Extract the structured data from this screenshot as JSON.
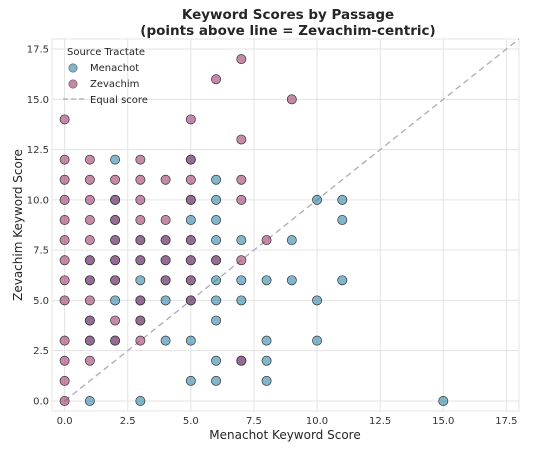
{
  "chart_data": {
    "type": "scatter",
    "title_line1": "Keyword Scores by Passage",
    "title_line2": "(points above line = Zevachim-centric)",
    "xlabel": "Menachot Keyword Score",
    "ylabel": "Zevachim Keyword Score",
    "xlim": [
      -0.5,
      18
    ],
    "ylim": [
      -0.5,
      18
    ],
    "x_ticks": [
      "0.0",
      "2.5",
      "5.0",
      "7.5",
      "10.0",
      "12.5",
      "15.0",
      "17.5"
    ],
    "y_ticks": [
      "0.0",
      "2.5",
      "5.0",
      "7.5",
      "10.0",
      "12.5",
      "15.0",
      "17.5"
    ],
    "x_tick_values": [
      0,
      2.5,
      5,
      7.5,
      10,
      12.5,
      15,
      17.5
    ],
    "y_tick_values": [
      0,
      2.5,
      5,
      7.5,
      10,
      12.5,
      15,
      17.5
    ],
    "grid": true,
    "legend": {
      "title": "Source Tractate",
      "position": "top-left",
      "diagonal_label": "Equal score"
    },
    "diagonal": {
      "from": [
        0,
        0
      ],
      "to": [
        18,
        18
      ],
      "style": "dashed",
      "color": "#b0a8b9"
    },
    "series": [
      {
        "name": "Menachot",
        "color": "#2e86ab",
        "points": [
          [
            1,
            0
          ],
          [
            3,
            0
          ],
          [
            15,
            0
          ],
          [
            5,
            1
          ],
          [
            6,
            1
          ],
          [
            8,
            1
          ],
          [
            6,
            2
          ],
          [
            7,
            2
          ],
          [
            8,
            2
          ],
          [
            1,
            3
          ],
          [
            2,
            3
          ],
          [
            4,
            3
          ],
          [
            5,
            3
          ],
          [
            8,
            3
          ],
          [
            10,
            3
          ],
          [
            1,
            4
          ],
          [
            3,
            4
          ],
          [
            6,
            4
          ],
          [
            2,
            5
          ],
          [
            3,
            5
          ],
          [
            4,
            5
          ],
          [
            5,
            5
          ],
          [
            6,
            5
          ],
          [
            7,
            5
          ],
          [
            10,
            5
          ],
          [
            1,
            6
          ],
          [
            2,
            6
          ],
          [
            3,
            6
          ],
          [
            4,
            6
          ],
          [
            5,
            6
          ],
          [
            6,
            6
          ],
          [
            7,
            6
          ],
          [
            8,
            6
          ],
          [
            9,
            6
          ],
          [
            11,
            6
          ],
          [
            1,
            7
          ],
          [
            2,
            7
          ],
          [
            3,
            7
          ],
          [
            4,
            7
          ],
          [
            5,
            7
          ],
          [
            6,
            7
          ],
          [
            2,
            8
          ],
          [
            3,
            8
          ],
          [
            4,
            8
          ],
          [
            5,
            8
          ],
          [
            6,
            8
          ],
          [
            7,
            8
          ],
          [
            9,
            8
          ],
          [
            2,
            9
          ],
          [
            5,
            9
          ],
          [
            6,
            9
          ],
          [
            11,
            9
          ],
          [
            2,
            10
          ],
          [
            5,
            10
          ],
          [
            6,
            10
          ],
          [
            10,
            10
          ],
          [
            11,
            10
          ],
          [
            6,
            11
          ],
          [
            2,
            12
          ],
          [
            5,
            12
          ]
        ]
      },
      {
        "name": "Zevachim",
        "color": "#a23b72",
        "points": [
          [
            0,
            0
          ],
          [
            0,
            1
          ],
          [
            0,
            2
          ],
          [
            0,
            3
          ],
          [
            0,
            5
          ],
          [
            0,
            6
          ],
          [
            0,
            7
          ],
          [
            0,
            8
          ],
          [
            0,
            9
          ],
          [
            0,
            10
          ],
          [
            0,
            11
          ],
          [
            0,
            12
          ],
          [
            0,
            14
          ],
          [
            1,
            2
          ],
          [
            1,
            3
          ],
          [
            1,
            4
          ],
          [
            1,
            5
          ],
          [
            1,
            6
          ],
          [
            1,
            7
          ],
          [
            1,
            8
          ],
          [
            1,
            9
          ],
          [
            1,
            10
          ],
          [
            1,
            11
          ],
          [
            1,
            12
          ],
          [
            2,
            3
          ],
          [
            2,
            4
          ],
          [
            2,
            6
          ],
          [
            2,
            7
          ],
          [
            2,
            8
          ],
          [
            2,
            9
          ],
          [
            2,
            10
          ],
          [
            2,
            11
          ],
          [
            3,
            3
          ],
          [
            3,
            4
          ],
          [
            3,
            5
          ],
          [
            3,
            7
          ],
          [
            3,
            8
          ],
          [
            3,
            9
          ],
          [
            3,
            10
          ],
          [
            3,
            11
          ],
          [
            3,
            12
          ],
          [
            4,
            6
          ],
          [
            4,
            7
          ],
          [
            4,
            8
          ],
          [
            4,
            9
          ],
          [
            4,
            11
          ],
          [
            5,
            5
          ],
          [
            5,
            6
          ],
          [
            5,
            7
          ],
          [
            5,
            8
          ],
          [
            5,
            10
          ],
          [
            5,
            11
          ],
          [
            5,
            12
          ],
          [
            5,
            14
          ],
          [
            6,
            7
          ],
          [
            6,
            16
          ],
          [
            7,
            2
          ],
          [
            7,
            7
          ],
          [
            7,
            10
          ],
          [
            7,
            11
          ],
          [
            7,
            13
          ],
          [
            7,
            17
          ],
          [
            8,
            8
          ],
          [
            9,
            15
          ]
        ]
      }
    ]
  }
}
